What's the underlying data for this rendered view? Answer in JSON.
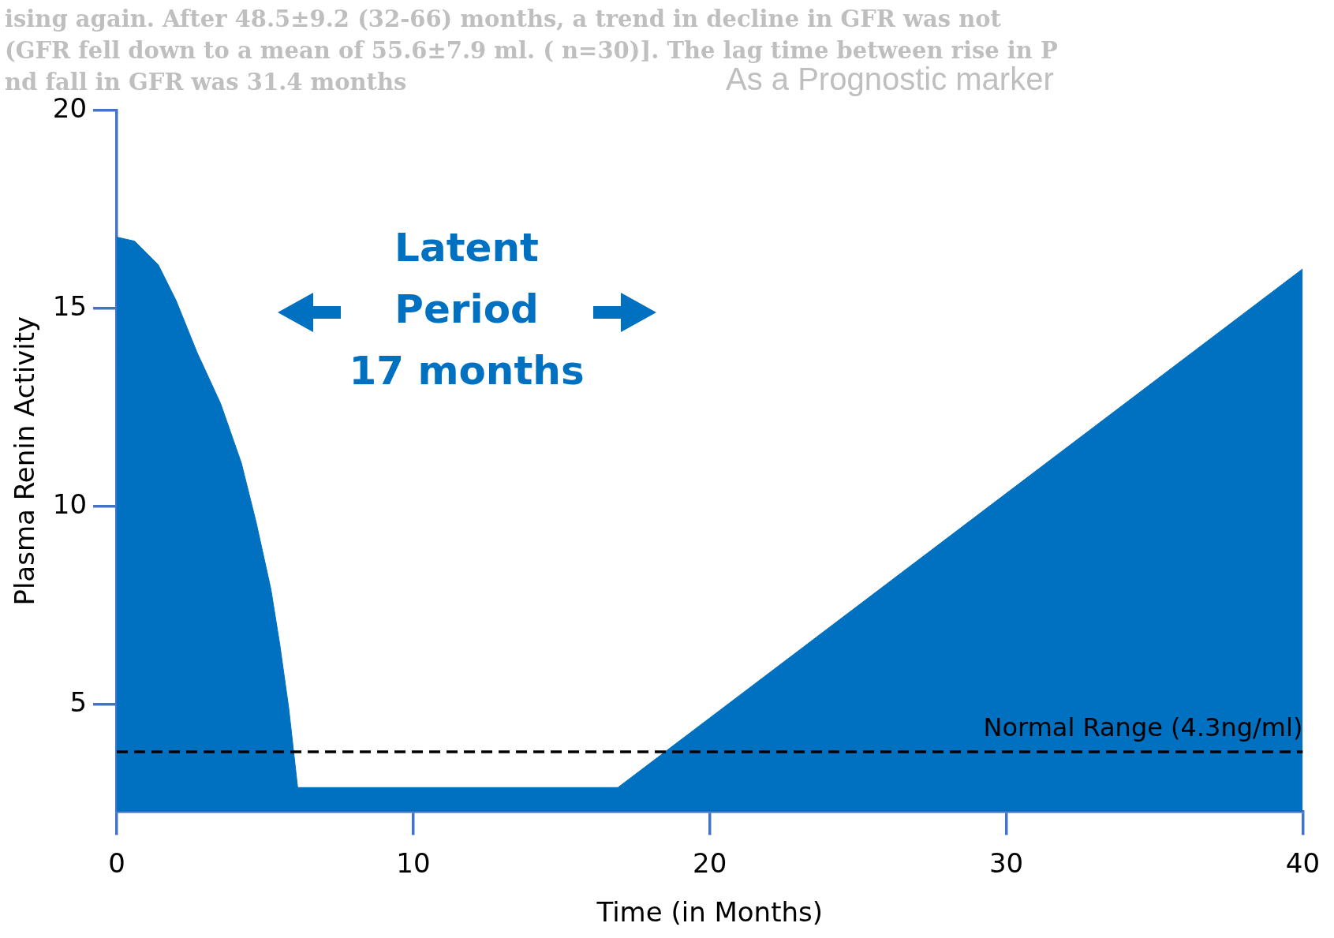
{
  "chart_data": {
    "type": "area",
    "xlabel": "Time (in Months)",
    "ylabel": "Plasma Renin Activity",
    "annotations": [
      "ising again. After 48.5±9.2 (32-66) months, a trend in decline in GFR was not",
      "(GFR fell down to a mean of 55.6±7.9 ml. ( n=30)]. The lag time between rise in P",
      "nd fall in GFR was 31.4 months",
      "As a Prognostic marker",
      "Latent\nPeriod\n17 months"
    ],
    "x": [
      0,
      0.6,
      1.4,
      2.0,
      2.7,
      3.5,
      4.2,
      4.7,
      5.2,
      5.5,
      5.8,
      6.1,
      16.9,
      40
    ],
    "series": [
      {
        "color": "#0070c0",
        "values": [
          16.8,
          16.7,
          16.1,
          15.2,
          13.9,
          12.6,
          11.1,
          9.6,
          7.9,
          6.5,
          4.9,
          2.9,
          2.9,
          16.0
        ]
      }
    ],
    "xlim": [
      0,
      40
    ],
    "xticks": [
      0,
      10,
      20,
      30,
      40
    ],
    "ylim": [
      2.3,
      20
    ],
    "yticks": [
      5,
      10,
      15,
      20
    ],
    "ref_lines": [
      {
        "axis": "y",
        "value": 3.8,
        "label": "Normal Range (4.3ng/ml)",
        "color": "#000000",
        "line_style": "dashed"
      }
    ],
    "grid": false,
    "legend": false
  }
}
